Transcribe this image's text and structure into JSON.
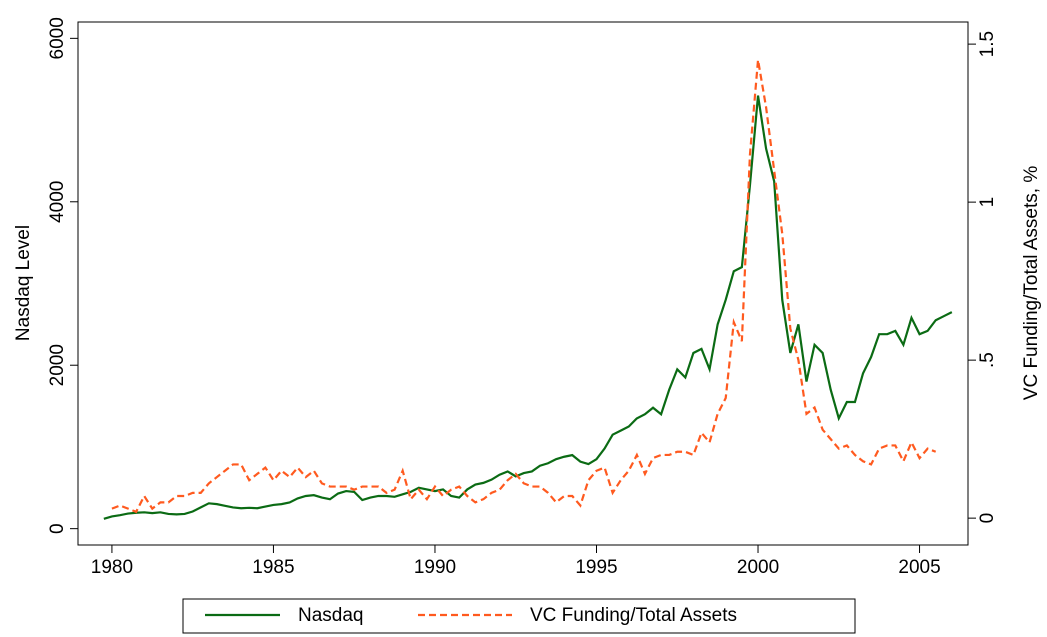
{
  "chart_data": {
    "type": "line",
    "y_label": "Nasdaq Level",
    "y2_label": "VC Funding/Total Assets, %",
    "xlim": [
      1978.95,
      2006.5
    ],
    "xticks": [
      1980,
      1985,
      1990,
      1995,
      2000,
      2005
    ],
    "ylim": [
      -200,
      6200
    ],
    "yticks": [
      0,
      2000,
      4000,
      6000
    ],
    "y2lim": [
      -0.085,
      1.57
    ],
    "y2ticks": [
      0,
      {
        "value": 0.5,
        "label": ".5"
      },
      1,
      1.5
    ],
    "legend": "bottom",
    "x": [
      1979.75,
      1980,
      1980.25,
      1980.5,
      1980.75,
      1981,
      1981.25,
      1981.5,
      1981.75,
      1982,
      1982.25,
      1982.5,
      1982.75,
      1983,
      1983.25,
      1983.5,
      1983.75,
      1984,
      1984.25,
      1984.5,
      1984.75,
      1985,
      1985.25,
      1985.5,
      1985.75,
      1986,
      1986.25,
      1986.5,
      1986.75,
      1987,
      1987.25,
      1987.5,
      1987.75,
      1988,
      1988.25,
      1988.5,
      1988.75,
      1989,
      1989.25,
      1989.5,
      1989.75,
      1990,
      1990.25,
      1990.5,
      1990.75,
      1991,
      1991.25,
      1991.5,
      1991.75,
      1992,
      1992.25,
      1992.5,
      1992.75,
      1993,
      1993.25,
      1993.5,
      1993.75,
      1994,
      1994.25,
      1994.5,
      1994.75,
      1995,
      1995.25,
      1995.5,
      1995.75,
      1996,
      1996.25,
      1996.5,
      1996.75,
      1997,
      1997.25,
      1997.5,
      1997.75,
      1998,
      1998.25,
      1998.5,
      1998.75,
      1999,
      1999.25,
      1999.5,
      1999.75,
      2000,
      2000.25,
      2000.5,
      2000.75,
      2001,
      2001.25,
      2001.5,
      2001.75,
      2002,
      2002.25,
      2002.5,
      2002.75,
      2003,
      2003.25,
      2003.5,
      2003.75,
      2004,
      2004.25,
      2004.5,
      2004.75,
      2005,
      2005.25,
      2005.5,
      2005.75,
      2006
    ],
    "series": [
      {
        "name": "Nasdaq",
        "color": "#0b6b14",
        "dash": false,
        "axis": "y",
        "values": [
          120,
          150,
          165,
          185,
          195,
          200,
          190,
          200,
          180,
          175,
          180,
          210,
          260,
          310,
          300,
          280,
          260,
          250,
          255,
          250,
          270,
          290,
          300,
          320,
          370,
          400,
          410,
          380,
          360,
          430,
          460,
          450,
          350,
          380,
          400,
          400,
          390,
          420,
          450,
          500,
          480,
          460,
          480,
          400,
          380,
          480,
          540,
          560,
          600,
          660,
          700,
          640,
          680,
          700,
          770,
          800,
          850,
          880,
          900,
          820,
          790,
          850,
          980,
          1150,
          1200,
          1250,
          1350,
          1400,
          1480,
          1400,
          1700,
          1950,
          1850,
          2150,
          2200,
          1950,
          2500,
          2800,
          3150,
          3200,
          4200,
          5300,
          4650,
          4250,
          2800,
          2150,
          2500,
          1800,
          2250,
          2150,
          1700,
          1350,
          1550,
          1550,
          1900,
          2100,
          2380,
          2380,
          2420,
          2250,
          2580,
          2380,
          2420,
          2550,
          2600,
          2650
        ]
      },
      {
        "name": "VC Funding/Total Assets",
        "color": "#ff5a1f",
        "dash": true,
        "axis": "y2",
        "values": [
          null,
          0.03,
          0.04,
          0.03,
          0.02,
          0.07,
          0.03,
          0.05,
          0.05,
          0.07,
          0.07,
          0.08,
          0.08,
          0.11,
          0.13,
          0.15,
          0.17,
          0.17,
          0.12,
          0.14,
          0.16,
          0.12,
          0.15,
          0.13,
          0.16,
          0.13,
          0.15,
          0.11,
          0.1,
          0.1,
          0.1,
          0.09,
          0.1,
          0.1,
          0.1,
          0.08,
          0.09,
          0.15,
          0.06,
          0.09,
          0.06,
          0.1,
          0.07,
          0.09,
          0.1,
          0.07,
          0.05,
          0.06,
          0.08,
          0.09,
          0.12,
          0.14,
          0.11,
          0.1,
          0.1,
          0.08,
          0.05,
          0.07,
          0.07,
          0.04,
          0.12,
          0.15,
          0.16,
          0.08,
          0.12,
          0.15,
          0.2,
          0.14,
          0.19,
          0.2,
          0.2,
          0.21,
          0.21,
          0.2,
          0.27,
          0.24,
          0.33,
          0.38,
          0.62,
          0.56,
          1.15,
          1.45,
          1.3,
          1.1,
          0.9,
          0.6,
          0.5,
          0.33,
          0.35,
          0.28,
          0.25,
          0.22,
          0.23,
          0.2,
          0.18,
          0.17,
          0.22,
          0.23,
          0.23,
          0.18,
          0.24,
          0.19,
          0.22,
          0.21,
          null,
          null
        ]
      }
    ]
  }
}
